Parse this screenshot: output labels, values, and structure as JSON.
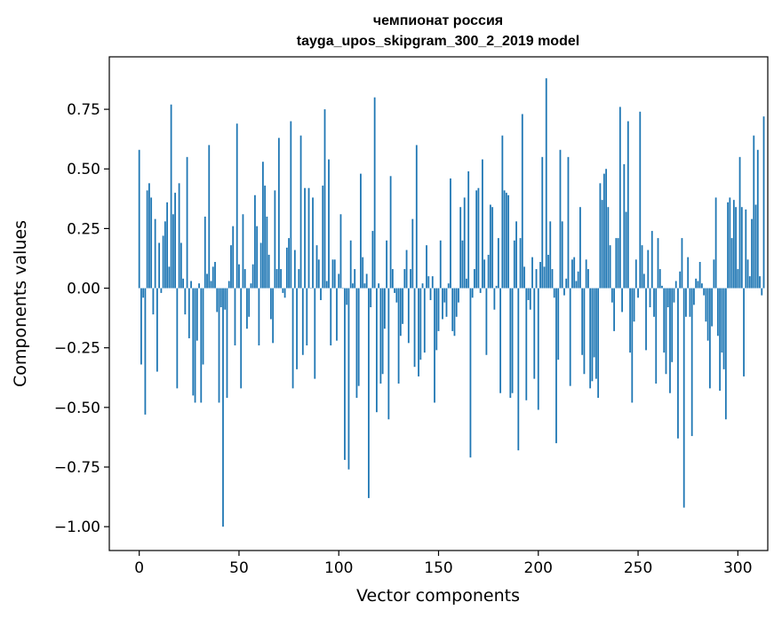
{
  "chart_data": {
    "type": "bar",
    "title_line1": "чемпионат россия",
    "title_line2": "tayga_upos_skipgram_300_2_2019 model",
    "xlabel": "Vector components",
    "ylabel": "Components values",
    "xlim": [
      -15,
      315
    ],
    "ylim": [
      -1.1,
      0.97
    ],
    "xticks": [
      0,
      50,
      100,
      150,
      200,
      250,
      300
    ],
    "xtick_labels": [
      "0",
      "50",
      "100",
      "150",
      "200",
      "250",
      "300"
    ],
    "yticks": [
      0.75,
      0.5,
      0.25,
      0.0,
      -0.25,
      -0.5,
      -0.75,
      -1.0
    ],
    "ytick_labels": [
      "0.75",
      "0.50",
      "0.25",
      "0.00",
      "−0.25",
      "−0.50",
      "−0.75",
      "−1.00"
    ],
    "bar_color": "#1f77b4",
    "values": [
      0.58,
      -0.32,
      -0.04,
      -0.53,
      0.41,
      0.44,
      0.38,
      -0.11,
      0.29,
      -0.35,
      0.19,
      -0.02,
      0.22,
      0.28,
      0.36,
      0.09,
      0.77,
      0.31,
      0.4,
      -0.42,
      0.44,
      0.19,
      0.04,
      -0.11,
      0.55,
      -0.21,
      0.03,
      -0.45,
      -0.48,
      -0.22,
      0.02,
      -0.48,
      -0.32,
      0.3,
      0.06,
      0.6,
      0.03,
      0.09,
      0.11,
      -0.1,
      -0.48,
      -0.08,
      -1.0,
      -0.09,
      -0.46,
      0.03,
      0.18,
      0.26,
      -0.24,
      0.69,
      0.1,
      -0.42,
      0.31,
      0.08,
      -0.17,
      -0.12,
      0.02,
      0.1,
      0.39,
      0.26,
      -0.24,
      0.19,
      0.53,
      0.43,
      0.3,
      0.14,
      -0.13,
      -0.23,
      0.41,
      0.08,
      0.63,
      0.08,
      -0.02,
      -0.04,
      0.17,
      0.21,
      0.7,
      -0.42,
      0.16,
      -0.34,
      0.08,
      0.64,
      -0.28,
      0.42,
      -0.24,
      0.42,
      0.0,
      0.38,
      -0.38,
      0.18,
      0.12,
      -0.05,
      0.43,
      0.75,
      0.03,
      0.54,
      -0.24,
      0.12,
      0.12,
      -0.22,
      0.06,
      0.31,
      0.0,
      -0.72,
      -0.07,
      -0.76,
      0.2,
      0.02,
      0.08,
      -0.46,
      -0.41,
      0.48,
      0.13,
      0.02,
      0.06,
      -0.88,
      -0.08,
      0.24,
      0.8,
      -0.52,
      0.02,
      -0.4,
      -0.36,
      -0.17,
      0.2,
      -0.55,
      0.47,
      0.08,
      -0.02,
      -0.06,
      -0.4,
      -0.2,
      -0.15,
      0.08,
      0.16,
      -0.23,
      0.08,
      0.29,
      -0.33,
      0.6,
      -0.37,
      -0.3,
      0.02,
      -0.27,
      0.18,
      0.05,
      -0.05,
      0.05,
      -0.48,
      -0.26,
      -0.18,
      0.2,
      -0.13,
      -0.06,
      -0.12,
      0.02,
      0.46,
      -0.18,
      -0.2,
      -0.12,
      -0.06,
      0.34,
      0.2,
      0.38,
      0.04,
      0.49,
      -0.71,
      -0.04,
      0.08,
      0.41,
      0.42,
      -0.02,
      0.54,
      0.12,
      -0.28,
      0.14,
      0.35,
      0.34,
      -0.09,
      0.01,
      0.21,
      -0.44,
      0.64,
      0.41,
      0.4,
      0.39,
      -0.46,
      -0.44,
      0.2,
      0.28,
      -0.68,
      0.21,
      0.73,
      0.09,
      -0.47,
      -0.05,
      -0.09,
      0.13,
      -0.38,
      0.08,
      -0.51,
      0.11,
      0.55,
      0.09,
      0.88,
      0.14,
      0.28,
      0.08,
      -0.04,
      -0.65,
      -0.3,
      0.58,
      0.28,
      -0.03,
      0.04,
      0.55,
      -0.41,
      0.12,
      0.13,
      0.03,
      0.07,
      0.34,
      -0.28,
      -0.36,
      0.12,
      0.08,
      -0.42,
      -0.39,
      -0.29,
      -0.38,
      -0.46,
      0.44,
      0.37,
      0.48,
      0.5,
      0.34,
      0.18,
      -0.06,
      -0.18,
      0.21,
      0.21,
      0.76,
      -0.1,
      0.52,
      0.32,
      0.7,
      -0.27,
      -0.48,
      -0.14,
      0.12,
      -0.04,
      0.74,
      0.18,
      0.06,
      -0.26,
      0.16,
      -0.08,
      0.24,
      -0.12,
      -0.4,
      0.21,
      0.08,
      0.01,
      -0.27,
      -0.36,
      -0.08,
      -0.44,
      -0.31,
      -0.06,
      0.03,
      -0.63,
      0.07,
      0.21,
      -0.92,
      -0.12,
      0.13,
      -0.12,
      -0.62,
      -0.07,
      0.04,
      0.03,
      0.11,
      0.02,
      -0.03,
      -0.14,
      -0.22,
      -0.42,
      -0.16,
      0.12,
      0.38,
      -0.2,
      -0.43,
      -0.27,
      -0.34,
      -0.55,
      0.36,
      0.38,
      0.21,
      0.37,
      0.34,
      0.08,
      0.55,
      0.34,
      -0.37,
      0.33,
      0.12,
      0.05,
      0.29,
      0.64,
      0.35,
      0.58,
      0.05,
      -0.03,
      0.72
    ]
  }
}
